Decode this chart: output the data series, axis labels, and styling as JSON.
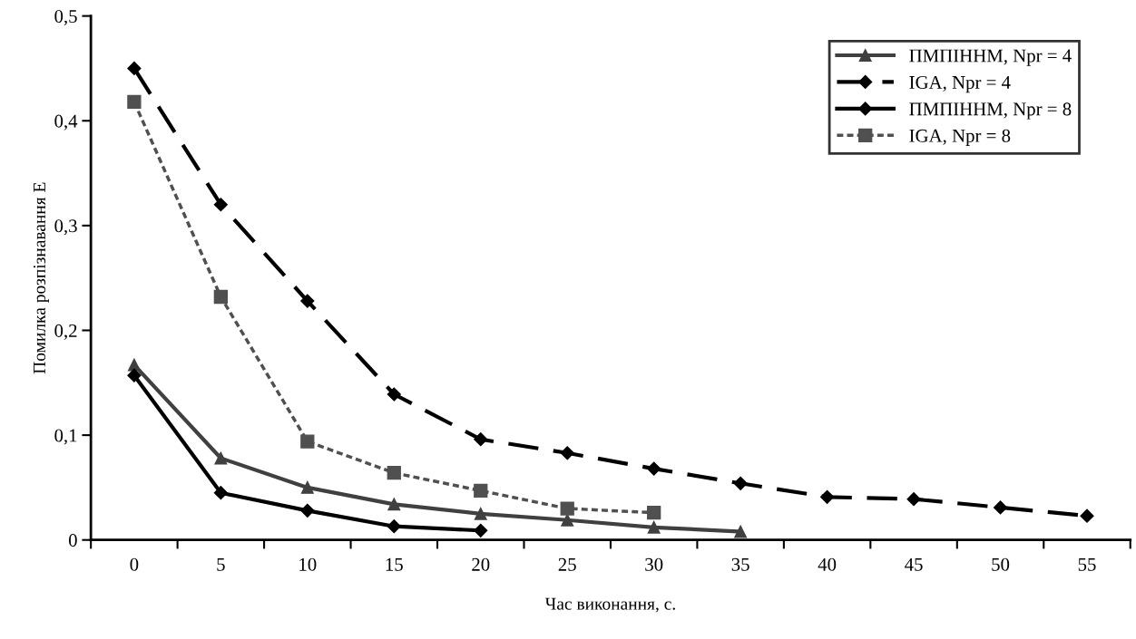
{
  "chart_data": {
    "type": "line",
    "xlabel": "Час виконання, с.",
    "ylabel": "Помилка розпізнавання E",
    "categories": [
      "0",
      "5",
      "10",
      "15",
      "20",
      "25",
      "30",
      "35",
      "40",
      "45",
      "50",
      "55"
    ],
    "ylim": [
      0,
      0.5
    ],
    "yticks": [
      0,
      {
        "value": 0.1,
        "label": "0,1"
      },
      {
        "value": 0.2,
        "label": "0,2"
      },
      {
        "value": 0.3,
        "label": "0,3"
      },
      {
        "value": 0.4,
        "label": "0,4"
      },
      {
        "value": 0.5,
        "label": "0,5"
      }
    ],
    "grid": false,
    "legend": "top right",
    "series": [
      {
        "name": "ПМПІННМ, Npr = 4",
        "color": "#404040",
        "marker": "triangle",
        "line_style": "solid",
        "values": [
          0.167,
          0.078,
          0.05,
          0.034,
          0.025,
          0.019,
          0.012,
          0.008,
          null,
          null,
          null,
          null
        ]
      },
      {
        "name": "IGA, Npr = 4",
        "color": "#000000",
        "marker": "diamond",
        "line_style": "dashed",
        "values": [
          0.45,
          0.32,
          0.228,
          0.139,
          0.096,
          0.083,
          0.068,
          0.054,
          0.041,
          0.039,
          0.031,
          0.023
        ]
      },
      {
        "name": "ПМПІННМ, Npr = 8",
        "color": "#000000",
        "marker": "diamond",
        "line_style": "solid",
        "values": [
          0.157,
          0.045,
          0.028,
          0.013,
          0.009,
          null,
          null,
          null,
          null,
          null,
          null,
          null
        ]
      },
      {
        "name": "IGA, Npr = 8",
        "color": "#505050",
        "marker": "square",
        "line_style": "dotted",
        "values": [
          0.418,
          0.232,
          0.094,
          0.064,
          0.047,
          0.03,
          0.026,
          null,
          null,
          null,
          null,
          null
        ]
      }
    ]
  }
}
